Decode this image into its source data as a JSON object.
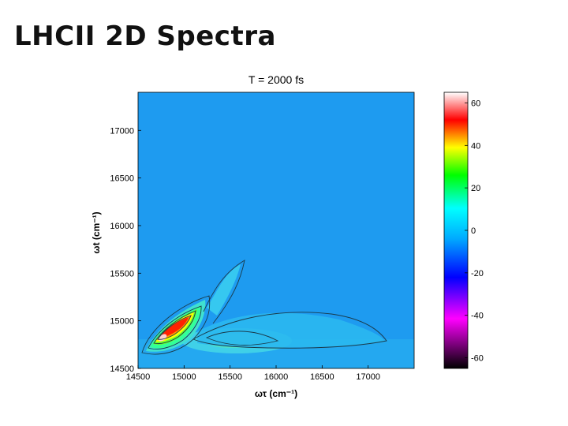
{
  "slide": {
    "title": "LHCII 2D Spectra"
  },
  "chart_data": {
    "type": "heatmap",
    "title": "T = 2000 fs",
    "xlabel": "ωτ (cm⁻¹)",
    "ylabel": "ωt (cm⁻¹)",
    "xlim": [
      14500,
      17500
    ],
    "ylim": [
      14500,
      17400
    ],
    "x_ticks": [
      "14500",
      "15000",
      "15500",
      "16000",
      "16500",
      "17000"
    ],
    "y_ticks": [
      "14500",
      "15000",
      "15500",
      "16000",
      "16500",
      "17000"
    ],
    "colorbar": {
      "range": [
        -65,
        65
      ],
      "ticks": [
        "60",
        "40",
        "20",
        "0",
        "-20",
        "-40",
        "-60"
      ],
      "tick_values": [
        60,
        40,
        20,
        0,
        -20,
        -40,
        -60
      ],
      "colormap": [
        "#000000",
        "#ff00ff",
        "#0000ff",
        "#00aaff",
        "#00ffff",
        "#00ff00",
        "#ffff00",
        "#ff0000",
        "#ffffff"
      ]
    },
    "background_value": 0,
    "features": [
      {
        "name": "diagonal peak",
        "x": 14850,
        "y": 14850,
        "peak_value": 62
      },
      {
        "name": "cross peak",
        "x": 15550,
        "y": 14820,
        "peak_value": 12
      },
      {
        "name": "upper ridge",
        "x": 15400,
        "y": 15500,
        "peak_value": 6
      }
    ]
  }
}
